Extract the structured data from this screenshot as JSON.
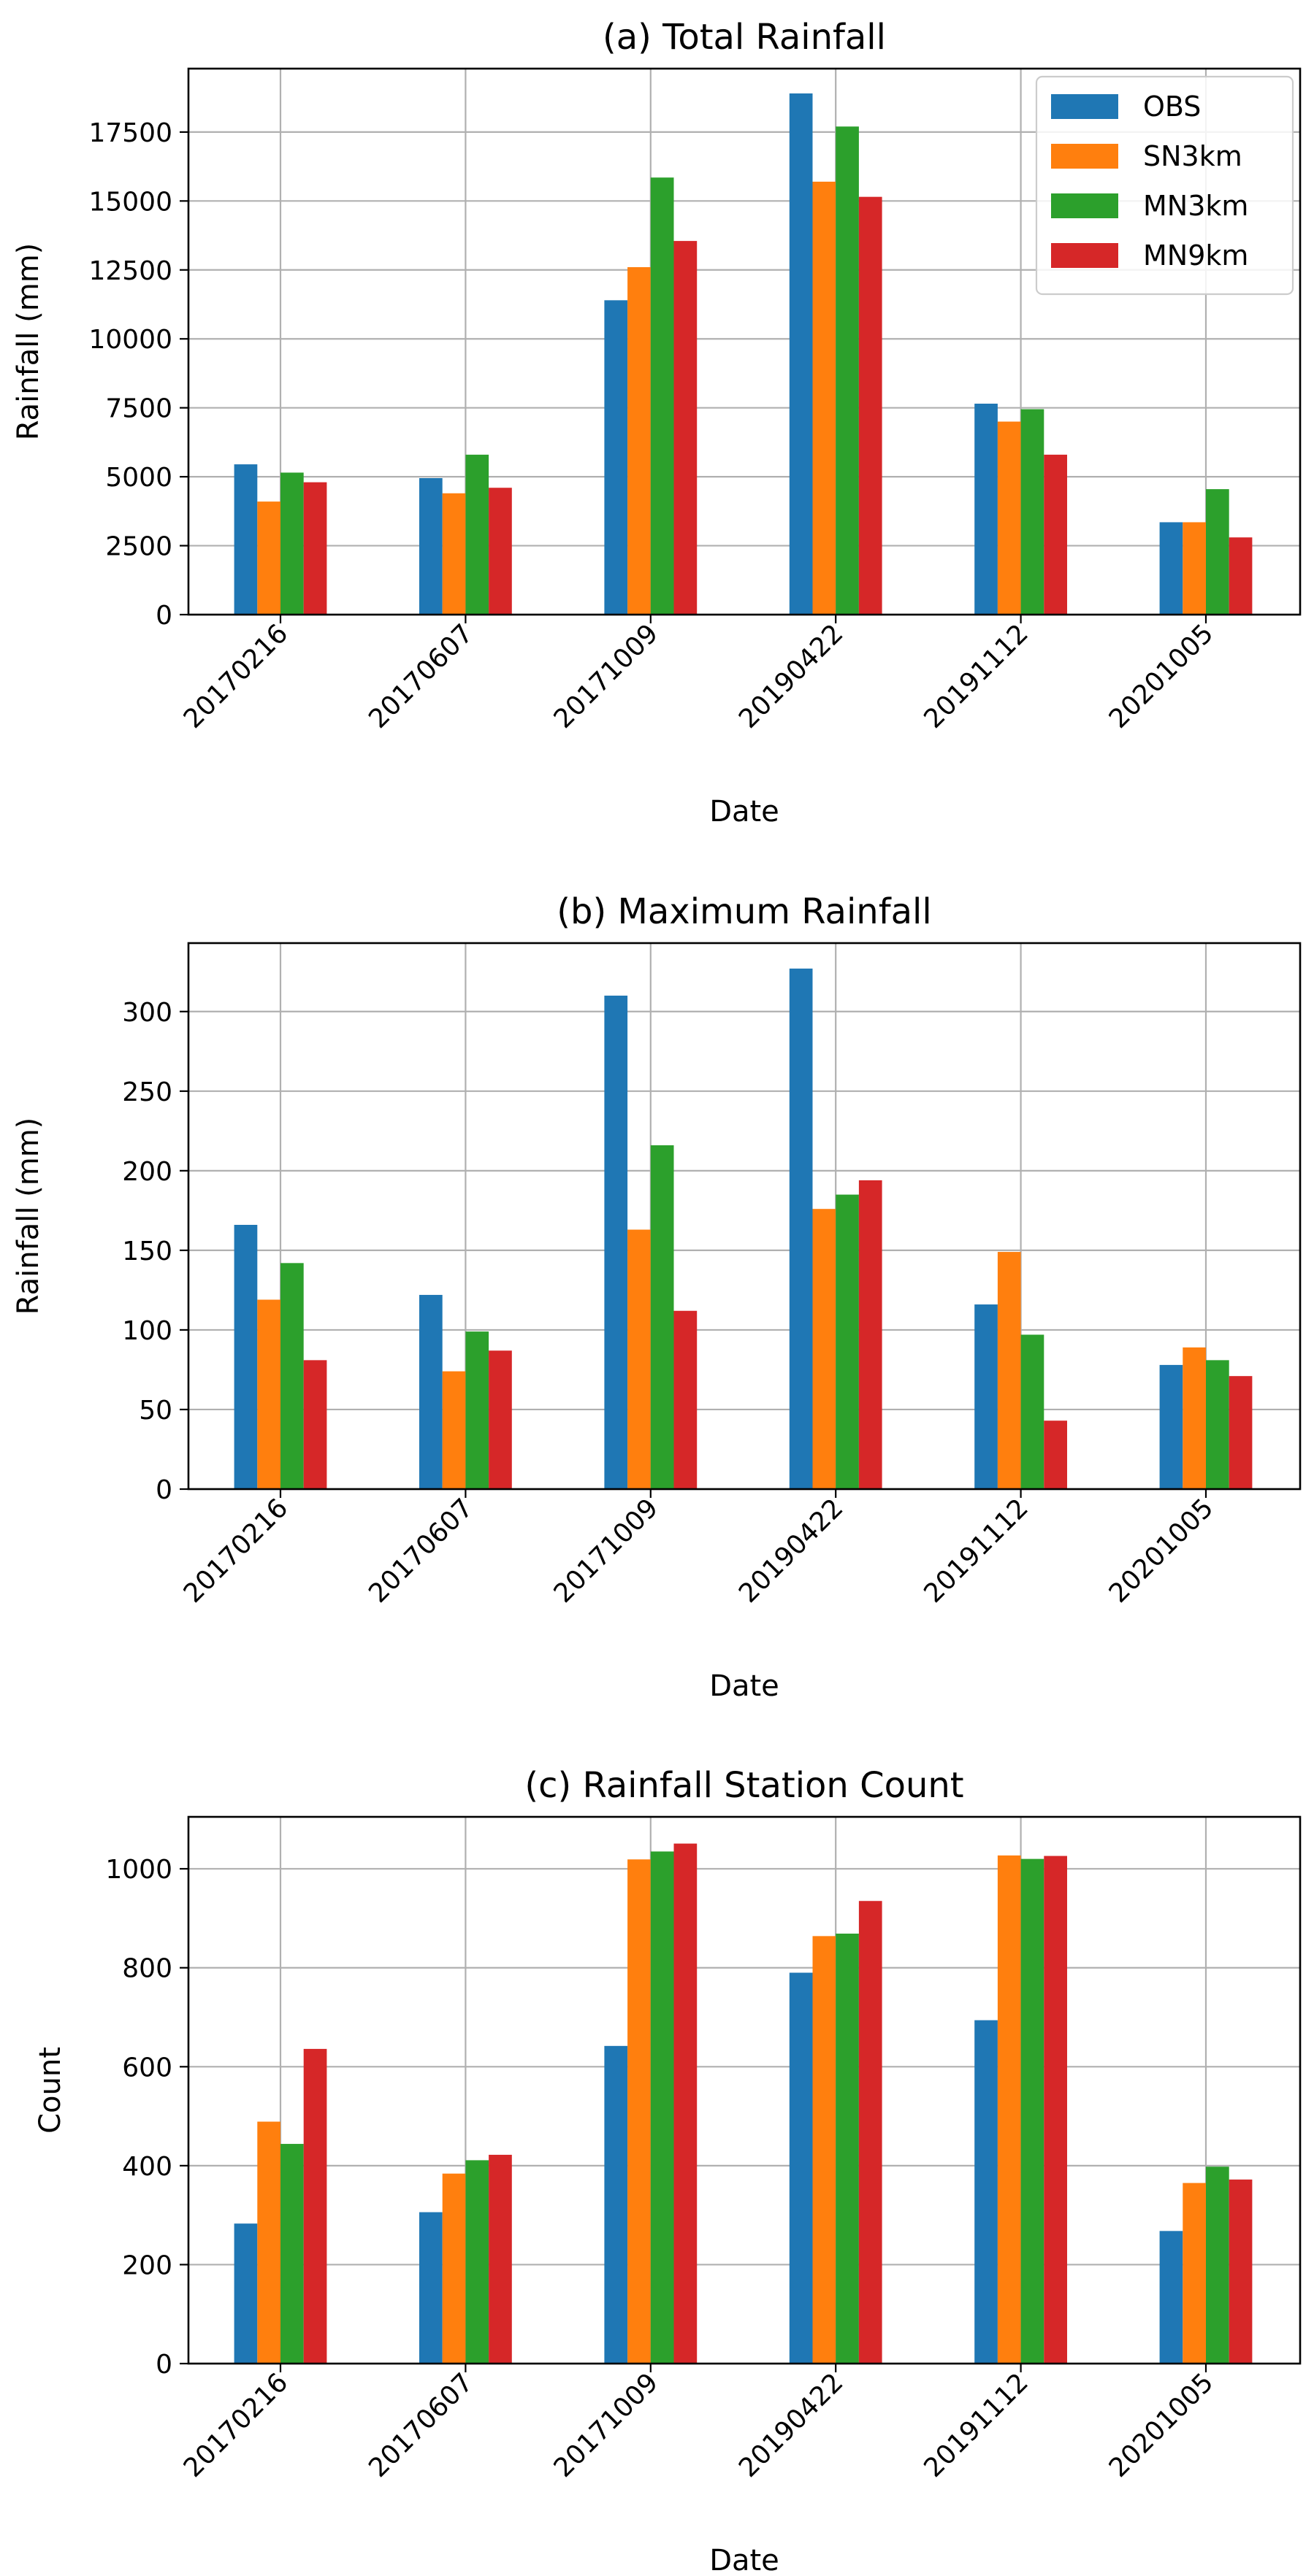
{
  "chart_data": [
    {
      "type": "bar",
      "title": "(a) Total Rainfall",
      "xlabel": "Date",
      "ylabel": "Rainfall (mm)",
      "categories": [
        "20170216",
        "20170607",
        "20171009",
        "20190422",
        "20191112",
        "20201005"
      ],
      "ylim": [
        0,
        19800
      ],
      "yticks": [
        0,
        2500,
        5000,
        7500,
        10000,
        12500,
        15000,
        17500
      ],
      "ytick_labels": [
        "0",
        "2500",
        "5000",
        "7500",
        "10000",
        "12500",
        "15000",
        "17500"
      ],
      "grid": true,
      "legend_position": "top-right",
      "series": [
        {
          "name": "OBS",
          "color": "#1f77b4",
          "values": [
            5450,
            4950,
            11400,
            18900,
            7650,
            3350
          ]
        },
        {
          "name": "SN3km",
          "color": "#ff7f0e",
          "values": [
            4100,
            4400,
            12600,
            15700,
            7000,
            3350
          ]
        },
        {
          "name": "MN3km",
          "color": "#2ca02c",
          "values": [
            5150,
            5800,
            15850,
            17700,
            7450,
            4550
          ]
        },
        {
          "name": "MN9km",
          "color": "#d62728",
          "values": [
            4800,
            4600,
            13550,
            15150,
            5800,
            2800
          ]
        }
      ]
    },
    {
      "type": "bar",
      "title": "(b) Maximum Rainfall",
      "xlabel": "Date",
      "ylabel": "Rainfall (mm)",
      "categories": [
        "20170216",
        "20170607",
        "20171009",
        "20190422",
        "20191112",
        "20201005"
      ],
      "ylim": [
        0,
        343
      ],
      "yticks": [
        0,
        50,
        100,
        150,
        200,
        250,
        300
      ],
      "ytick_labels": [
        "0",
        "50",
        "100",
        "150",
        "200",
        "250",
        "300"
      ],
      "grid": true,
      "series": [
        {
          "name": "OBS",
          "color": "#1f77b4",
          "values": [
            166,
            122,
            310,
            327,
            116,
            78
          ]
        },
        {
          "name": "SN3km",
          "color": "#ff7f0e",
          "values": [
            119,
            74,
            163,
            176,
            149,
            89
          ]
        },
        {
          "name": "MN3km",
          "color": "#2ca02c",
          "values": [
            142,
            99,
            216,
            185,
            97,
            81
          ]
        },
        {
          "name": "MN9km",
          "color": "#d62728",
          "values": [
            81,
            87,
            112,
            194,
            43,
            71
          ]
        }
      ]
    },
    {
      "type": "bar",
      "title": "(c) Rainfall Station Count",
      "xlabel": "Date",
      "ylabel": "Count",
      "categories": [
        "20170216",
        "20170607",
        "20171009",
        "20190422",
        "20191112",
        "20201005"
      ],
      "ylim": [
        0,
        1105
      ],
      "yticks": [
        0,
        200,
        400,
        600,
        800,
        1000
      ],
      "ytick_labels": [
        "0",
        "200",
        "400",
        "600",
        "800",
        "1000"
      ],
      "grid": true,
      "series": [
        {
          "name": "OBS",
          "color": "#1f77b4",
          "values": [
            283,
            306,
            642,
            790,
            694,
            268
          ]
        },
        {
          "name": "SN3km",
          "color": "#ff7f0e",
          "values": [
            489,
            384,
            1019,
            864,
            1027,
            365
          ]
        },
        {
          "name": "MN3km",
          "color": "#2ca02c",
          "values": [
            444,
            411,
            1035,
            869,
            1020,
            398
          ]
        },
        {
          "name": "MN9km",
          "color": "#d62728",
          "values": [
            636,
            422,
            1051,
            935,
            1026,
            372
          ]
        }
      ]
    }
  ]
}
